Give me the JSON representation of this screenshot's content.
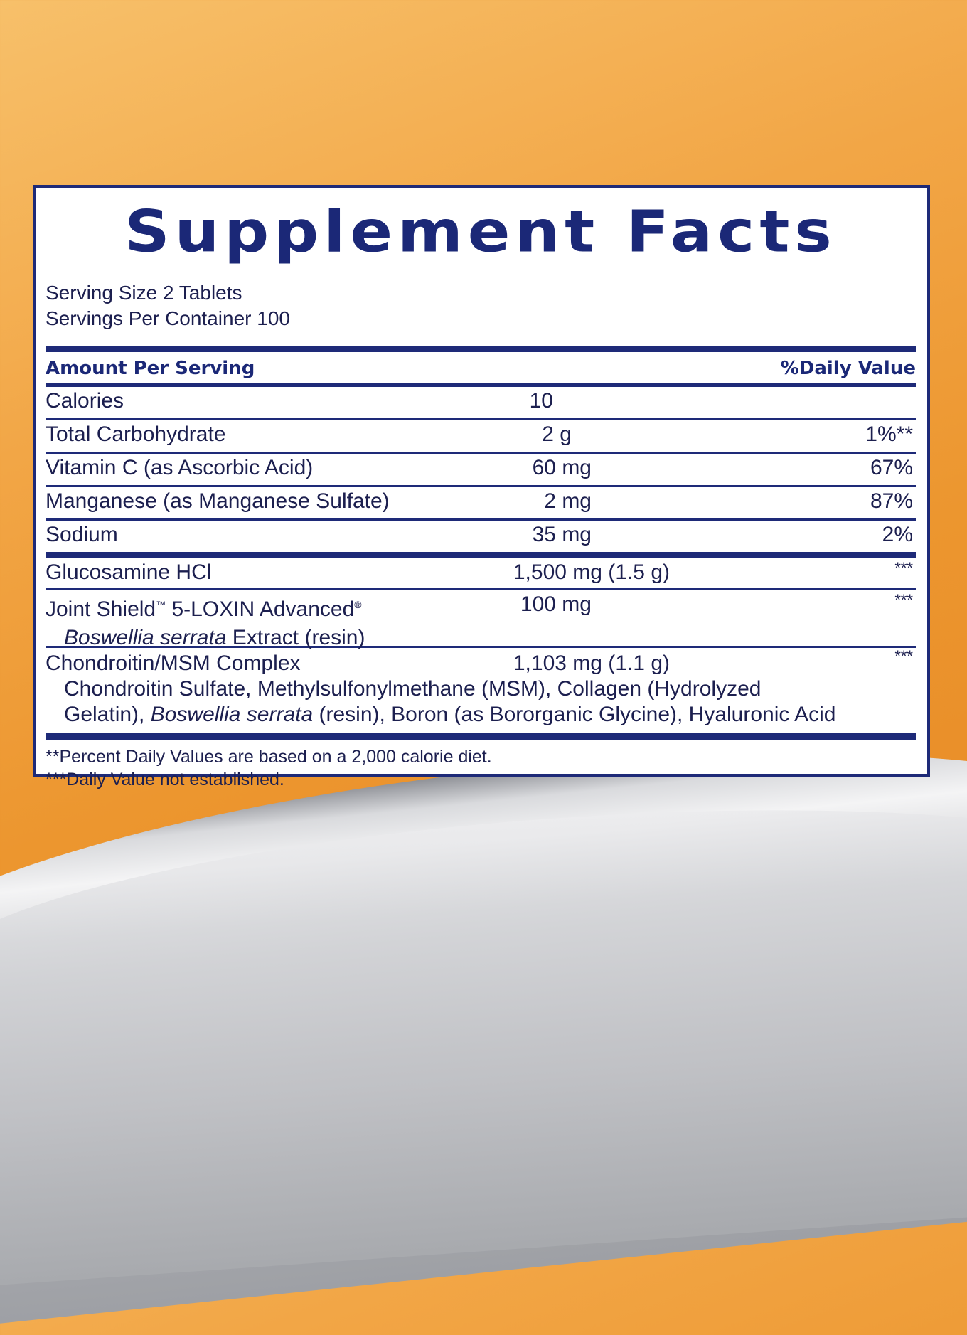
{
  "title": "Supplement Facts",
  "serving_size": "Serving Size 2 Tablets",
  "servings_per_container": "Servings Per Container 100",
  "header": {
    "amount": "Amount Per Serving",
    "dv": "%Daily Value"
  },
  "nutrients": [
    {
      "name": "Calories",
      "amount": "10",
      "dv": ""
    },
    {
      "name": "Total Carbohydrate",
      "amount": "2 g",
      "dv": "1%**"
    },
    {
      "name": "Vitamin C (as Ascorbic Acid)",
      "amount": "60 mg",
      "dv": "67%"
    },
    {
      "name": "Manganese (as Manganese Sulfate)",
      "amount": "2 mg",
      "dv": "87%"
    },
    {
      "name": "Sodium",
      "amount": "35 mg",
      "dv": "2%"
    }
  ],
  "others": {
    "glucosamine": {
      "name": "Glucosamine HCl",
      "amount": "1,500 mg (1.5 g)",
      "dv": "***"
    },
    "joint": {
      "name": "Joint Shield",
      "tm": "™",
      "name2": " 5-LOXIN Advanced",
      "reg": "®",
      "sub_italic": "Boswellia serrata",
      "sub_rest": " Extract (resin)",
      "amount": "100 mg",
      "dv": "***"
    },
    "chondroitin": {
      "name": "Chondroitin/MSM Complex",
      "amount": "1,103 mg (1.1 g)",
      "dv": "***",
      "line1": "Chondroitin Sulfate, Methylsulfonylmethane (MSM), Collagen (Hydrolyzed",
      "line2a": "Gelatin), ",
      "line2_italic": "Boswellia serrata",
      "line2b": " (resin), Boron (as Bororganic Glycine), Hyaluronic Acid"
    }
  },
  "footnotes": [
    "**Percent Daily Values are based on a 2,000 calorie diet.",
    "***Daily Value not established."
  ],
  "colors": {
    "navy": "#1e2a78",
    "text": "#1c1f4f",
    "orange": "#ec962f"
  }
}
